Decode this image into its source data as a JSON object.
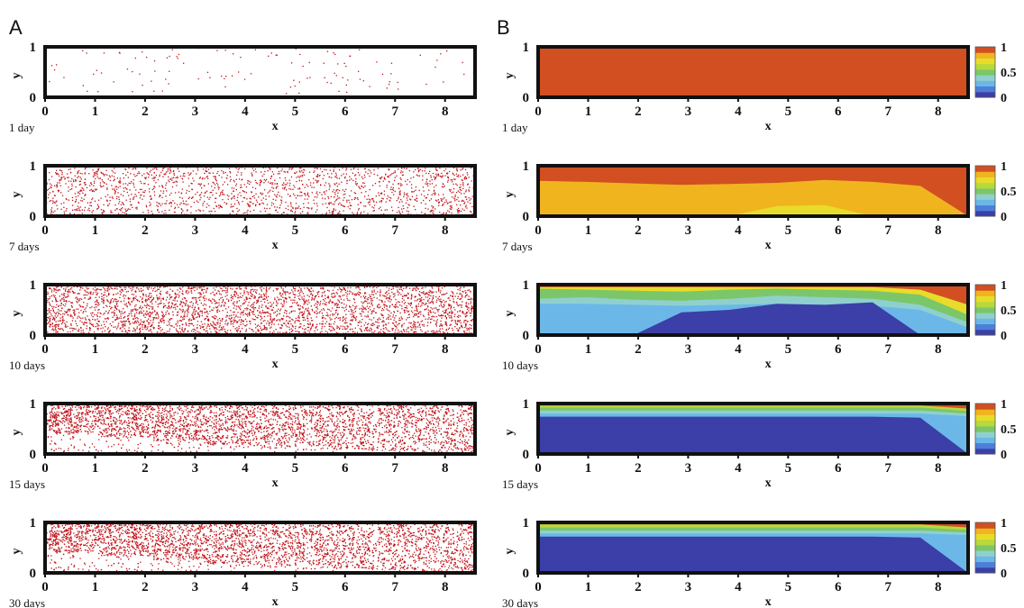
{
  "panels": [
    "A",
    "B"
  ],
  "chart_data": [
    {
      "type": "scatter",
      "panel": "A",
      "title": "",
      "xlabel": "x",
      "ylabel": "y",
      "xlim": [
        0,
        8.6
      ],
      "ylim": [
        0,
        1
      ],
      "x_ticks": [
        "0",
        "1",
        "2",
        "3",
        "4",
        "5",
        "6",
        "7",
        "8"
      ],
      "y_ticks": [
        "0",
        "1"
      ],
      "point_color": "#c0141b",
      "frames": [
        {
          "time": "1 day",
          "density": 0.03,
          "profile": [
            1,
            1,
            1,
            1,
            1,
            1,
            1,
            1,
            1
          ]
        },
        {
          "time": "7 days",
          "density": 0.45,
          "profile": [
            1,
            1,
            1,
            1,
            1,
            1,
            1,
            1,
            1
          ]
        },
        {
          "time": "10 days",
          "density": 0.82,
          "profile": [
            1,
            1,
            1,
            1,
            1,
            1,
            1,
            1,
            1
          ]
        },
        {
          "time": "15 days",
          "density": 0.95,
          "profile": [
            0.85,
            0.7,
            0.55,
            0.42,
            0.3,
            0.22,
            0.15,
            0.08
          ]
        },
        {
          "time": "30 days",
          "density": 0.97,
          "profile": [
            0.85,
            0.7,
            0.55,
            0.42,
            0.3,
            0.22,
            0.15,
            0.08
          ]
        }
      ]
    },
    {
      "type": "heatmap",
      "panel": "B",
      "title": "",
      "xlabel": "x",
      "ylabel": "y",
      "xlim": [
        0,
        8.6
      ],
      "ylim": [
        0,
        1
      ],
      "x_ticks": [
        "0",
        "1",
        "2",
        "3",
        "4",
        "5",
        "6",
        "7",
        "8"
      ],
      "y_ticks": [
        "0",
        "1"
      ],
      "colorbar": {
        "ticks": [
          "0",
          "0.5",
          "1"
        ],
        "colors": [
          "#3b3fa7",
          "#4d7fd9",
          "#6bb8e8",
          "#8fd0cf",
          "#7cc66a",
          "#b7d93c",
          "#e8dc2a",
          "#f0b41f",
          "#d24f22"
        ]
      },
      "frames": [
        {
          "time": "1 day",
          "levels": [
            {
              "color": "#d24f22",
              "top": [
                1,
                1,
                1,
                1,
                1,
                1,
                1,
                1,
                1,
                1
              ]
            }
          ]
        },
        {
          "time": "7 days",
          "levels": [
            {
              "color": "#d24f22",
              "top": [
                1,
                1,
                1,
                1,
                1,
                1,
                1,
                1,
                1,
                1
              ]
            },
            {
              "color": "#f0b41f",
              "top": [
                0.7,
                0.68,
                0.65,
                0.62,
                0.64,
                0.66,
                0.72,
                0.68,
                0.6,
                0
              ]
            },
            {
              "color": "#e8dc2a",
              "top": [
                0,
                0,
                0,
                0,
                0,
                0.2,
                0.22,
                0,
                0,
                0
              ]
            }
          ]
        },
        {
          "time": "10 days",
          "levels": [
            {
              "color": "#d24f22",
              "top": [
                1,
                1,
                1,
                1,
                1,
                1,
                1,
                1,
                1,
                1
              ]
            },
            {
              "color": "#e8dc2a",
              "top": [
                0.95,
                0.95,
                0.95,
                0.95,
                0.95,
                0.95,
                0.95,
                0.95,
                0.9,
                0.6
              ]
            },
            {
              "color": "#7cc66a",
              "top": [
                0.92,
                0.9,
                0.88,
                0.86,
                0.9,
                0.92,
                0.9,
                0.88,
                0.8,
                0.4
              ]
            },
            {
              "color": "#8fd0cf",
              "top": [
                0.72,
                0.75,
                0.7,
                0.68,
                0.72,
                0.78,
                0.75,
                0.72,
                0.6,
                0.25
              ]
            },
            {
              "color": "#6bb8e8",
              "top": [
                0.62,
                0.62,
                0.6,
                0.58,
                0.6,
                0.62,
                0.6,
                0.58,
                0.5,
                0.15
              ]
            },
            {
              "color": "#3b3fa7",
              "top": [
                0,
                0,
                0,
                0.45,
                0.5,
                0.62,
                0.6,
                0.65,
                0,
                0
              ]
            }
          ]
        },
        {
          "time": "15 days",
          "levels": [
            {
              "color": "#d24f22",
              "top": [
                1,
                1,
                1,
                1,
                1,
                1,
                1,
                1,
                1,
                1
              ]
            },
            {
              "color": "#b7d93c",
              "top": [
                0.96,
                0.96,
                0.96,
                0.96,
                0.96,
                0.96,
                0.96,
                0.96,
                0.96,
                0.9
              ]
            },
            {
              "color": "#7cc66a",
              "top": [
                0.92,
                0.92,
                0.92,
                0.92,
                0.92,
                0.92,
                0.92,
                0.92,
                0.92,
                0.85
              ]
            },
            {
              "color": "#8fd0cf",
              "top": [
                0.86,
                0.86,
                0.86,
                0.86,
                0.86,
                0.86,
                0.86,
                0.86,
                0.86,
                0.8
              ]
            },
            {
              "color": "#6bb8e8",
              "top": [
                0.8,
                0.8,
                0.8,
                0.8,
                0.8,
                0.8,
                0.8,
                0.8,
                0.8,
                0.75
              ]
            },
            {
              "color": "#3b3fa7",
              "top": [
                0.74,
                0.74,
                0.74,
                0.74,
                0.74,
                0.74,
                0.74,
                0.74,
                0.72,
                0
              ]
            }
          ]
        },
        {
          "time": "30 days",
          "levels": [
            {
              "color": "#d24f22",
              "top": [
                1,
                1,
                1,
                1,
                1,
                1,
                1,
                1,
                1,
                1
              ]
            },
            {
              "color": "#b7d93c",
              "top": [
                0.96,
                0.96,
                0.96,
                0.96,
                0.96,
                0.96,
                0.96,
                0.96,
                0.96,
                0.9
              ]
            },
            {
              "color": "#7cc66a",
              "top": [
                0.9,
                0.9,
                0.9,
                0.9,
                0.9,
                0.9,
                0.9,
                0.9,
                0.9,
                0.85
              ]
            },
            {
              "color": "#8fd0cf",
              "top": [
                0.84,
                0.84,
                0.84,
                0.84,
                0.84,
                0.84,
                0.84,
                0.84,
                0.84,
                0.8
              ]
            },
            {
              "color": "#6bb8e8",
              "top": [
                0.78,
                0.78,
                0.78,
                0.78,
                0.78,
                0.78,
                0.78,
                0.78,
                0.78,
                0.75
              ]
            },
            {
              "color": "#3b3fa7",
              "top": [
                0.72,
                0.72,
                0.72,
                0.72,
                0.72,
                0.72,
                0.72,
                0.72,
                0.7,
                0
              ]
            }
          ]
        }
      ]
    }
  ]
}
